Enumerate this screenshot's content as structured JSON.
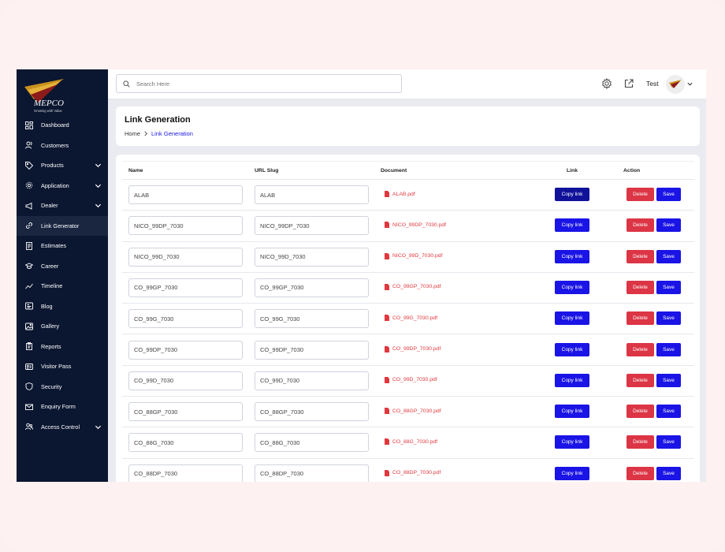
{
  "brand": {
    "name": "MEPCO",
    "tagline": "Growing with Value"
  },
  "sidebar": {
    "items": [
      {
        "label": "Dashboard",
        "icon": "grid-icon",
        "expandable": false,
        "active": false
      },
      {
        "label": "Customers",
        "icon": "users-icon",
        "expandable": false,
        "active": false
      },
      {
        "label": "Products",
        "icon": "tag-icon",
        "expandable": true,
        "active": false
      },
      {
        "label": "Application",
        "icon": "gear-icon",
        "expandable": true,
        "active": false
      },
      {
        "label": "Dealer",
        "icon": "megaphone-icon",
        "expandable": true,
        "active": false
      },
      {
        "label": "Link Generator",
        "icon": "link-icon",
        "expandable": false,
        "active": true
      },
      {
        "label": "Estimates",
        "icon": "document-icon",
        "expandable": false,
        "active": false
      },
      {
        "label": "Career",
        "icon": "graduation-cap-icon",
        "expandable": false,
        "active": false
      },
      {
        "label": "Timeline",
        "icon": "trend-line-icon",
        "expandable": false,
        "active": false
      },
      {
        "label": "Blog",
        "icon": "blog-icon",
        "expandable": false,
        "active": false
      },
      {
        "label": "Gallery",
        "icon": "image-icon",
        "expandable": false,
        "active": false
      },
      {
        "label": "Reports",
        "icon": "clipboard-icon",
        "expandable": false,
        "active": false
      },
      {
        "label": "Visitor Pass",
        "icon": "id-card-icon",
        "expandable": false,
        "active": false
      },
      {
        "label": "Security",
        "icon": "shield-icon",
        "expandable": false,
        "active": false
      },
      {
        "label": "Enquiry Form",
        "icon": "envelope-icon",
        "expandable": false,
        "active": false
      },
      {
        "label": "Access Control",
        "icon": "user-group-icon",
        "expandable": true,
        "active": false
      }
    ]
  },
  "topbar": {
    "search_placeholder": "Search Here",
    "user_name": "Test"
  },
  "header": {
    "title": "Link Generation",
    "breadcrumb": {
      "home": "Home",
      "current": "Link Generation"
    }
  },
  "table": {
    "columns": {
      "name": "Name",
      "slug": "URL Slug",
      "document": "Document",
      "link": "Link",
      "action": "Action"
    },
    "copy_label": "Copy link",
    "delete_label": "Delete",
    "save_label": "Save",
    "rows": [
      {
        "name": "ALAB",
        "slug": "ALAB",
        "document": "ALAB.pdf"
      },
      {
        "name": "NICO_99DP_7030",
        "slug": "NICO_99DP_7030",
        "document": "NICO_99DP_7030.pdf"
      },
      {
        "name": "NICO_99D_7030",
        "slug": "NICO_99D_7030",
        "document": "NICO_99D_7030.pdf"
      },
      {
        "name": "CO_99GP_7030",
        "slug": "CO_99GP_7030",
        "document": "CO_99GP_7030.pdf"
      },
      {
        "name": "CO_99G_7030",
        "slug": "CO_99G_7030",
        "document": "CO_99G_7030.pdf"
      },
      {
        "name": "CO_99DP_7030",
        "slug": "CO_99DP_7030",
        "document": "CO_99DP_7030.pdf"
      },
      {
        "name": "CO_99D_7030",
        "slug": "CO_99D_7030",
        "document": "CO_99D_7030.pdf"
      },
      {
        "name": "CO_88GP_7030",
        "slug": "CO_88GP_7030",
        "document": "CO_88GP_7030.pdf"
      },
      {
        "name": "CO_88G_7030",
        "slug": "CO_88G_7030",
        "document": "CO_88G_7030.pdf"
      },
      {
        "name": "CO_88DP_7030",
        "slug": "CO_88DP_7030",
        "document": "CO_88DP_7030.pdf"
      }
    ]
  },
  "colors": {
    "sidebar_bg": "#0b1630",
    "primary": "#1a14e6",
    "danger": "#dc3545",
    "pdf_text": "#e0383e"
  }
}
